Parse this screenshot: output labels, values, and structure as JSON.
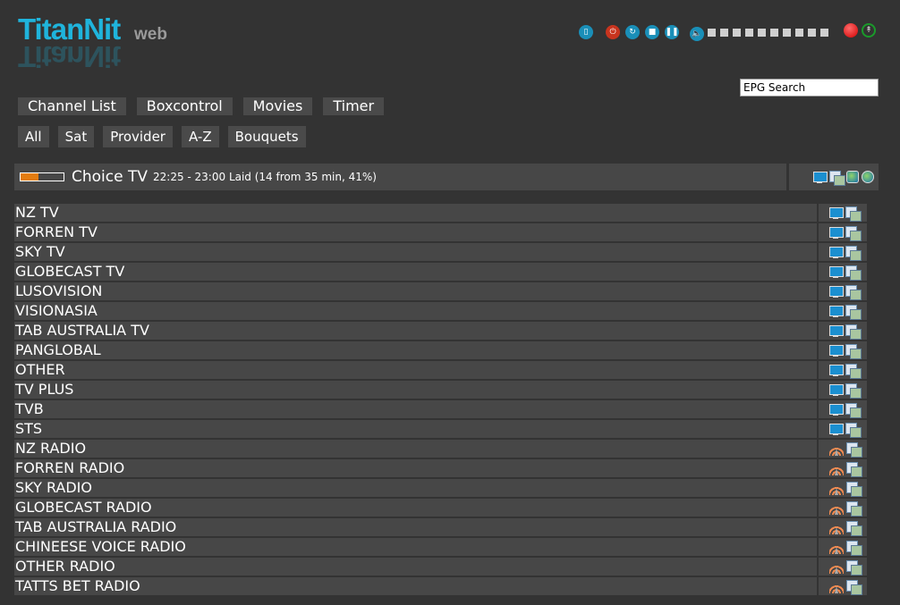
{
  "logo": {
    "text": "TitanNit",
    "suffix": "web"
  },
  "controls": {
    "icons": [
      "remote-icon",
      "power-icon",
      "restart-icon",
      "stop-icon",
      "pause-icon",
      "volume-icon"
    ],
    "volume_steps": 10,
    "volume_level": 0,
    "record_icon": "record-icon",
    "stream_icon": "antenna-icon"
  },
  "epg_search": {
    "value": "EPG Search"
  },
  "main_nav": [
    "Channel List",
    "Boxcontrol",
    "Movies",
    "Timer"
  ],
  "filter_nav": [
    "All",
    "Sat",
    "Provider",
    "A-Z",
    "Bouquets"
  ],
  "current": {
    "channel": "Choice TV",
    "info": "22:25 - 23:00 Laid (14 from 35 min, 41%)",
    "progress_percent": 41,
    "progress_color": "#e37c10"
  },
  "bouquets": [
    {
      "name": "NZ TV",
      "type": "tv"
    },
    {
      "name": "FORREN TV",
      "type": "tv"
    },
    {
      "name": "SKY TV",
      "type": "tv"
    },
    {
      "name": "GLOBECAST TV",
      "type": "tv"
    },
    {
      "name": "LUSOVISION",
      "type": "tv"
    },
    {
      "name": "VISIONASIA",
      "type": "tv"
    },
    {
      "name": "TAB AUSTRALIA TV",
      "type": "tv"
    },
    {
      "name": "PANGLOBAL",
      "type": "tv"
    },
    {
      "name": "OTHER",
      "type": "tv"
    },
    {
      "name": "TV PLUS",
      "type": "tv"
    },
    {
      "name": "TVB",
      "type": "tv"
    },
    {
      "name": "STS",
      "type": "tv"
    },
    {
      "name": "NZ RADIO",
      "type": "radio"
    },
    {
      "name": "FORREN RADIO",
      "type": "radio"
    },
    {
      "name": "SKY RADIO",
      "type": "radio"
    },
    {
      "name": "GLOBECAST RADIO",
      "type": "radio"
    },
    {
      "name": "TAB AUSTRALIA RADIO",
      "type": "radio"
    },
    {
      "name": "CHINEESE VOICE RADIO",
      "type": "radio"
    },
    {
      "name": "OTHER RADIO",
      "type": "radio"
    },
    {
      "name": "TATTS BET RADIO",
      "type": "radio"
    }
  ]
}
